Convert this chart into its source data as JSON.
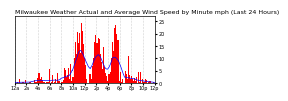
{
  "title": "Milwaukee Weather Actual and Average Wind Speed by Minute mph (Last 24 Hours)",
  "title_fontsize": 4.5,
  "bg_color": "#ffffff",
  "plot_bg": "#ffffff",
  "bar_color": "#ff0000",
  "line_color": "#0000ff",
  "ylim": [
    0,
    27
  ],
  "yticks": [
    0,
    5,
    10,
    15,
    20,
    25
  ],
  "n_points": 1440,
  "grid_color": "#aaaaaa",
  "xlabel_fontsize": 3.5,
  "ylabel_fontsize": 3.5
}
